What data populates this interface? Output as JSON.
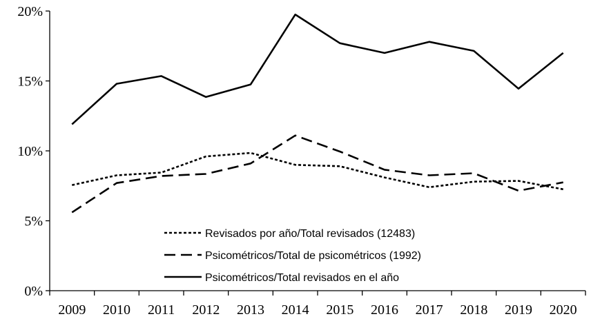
{
  "chart_data": {
    "type": "line",
    "title": "",
    "xlabel": "",
    "ylabel": "",
    "categories": [
      "2009",
      "2010",
      "2011",
      "2012",
      "2013",
      "2014",
      "2015",
      "2016",
      "2017",
      "2018",
      "2019",
      "2020"
    ],
    "ylim": [
      0,
      20
    ],
    "yticks": [
      0,
      5,
      10,
      15,
      20
    ],
    "ytick_labels": [
      "0%",
      "5%",
      "10%",
      "15%",
      "20%"
    ],
    "grid": false,
    "legend_position": "bottom-center",
    "series": [
      {
        "name": "Revisados por año/Total revisados (12483)",
        "style": "dotted",
        "values": [
          7.55,
          8.25,
          8.45,
          9.6,
          9.85,
          9.0,
          8.9,
          8.1,
          7.4,
          7.8,
          7.85,
          7.25
        ]
      },
      {
        "name": "Psicométricos/Total de psicométricos (1992)",
        "style": "dashed",
        "values": [
          5.6,
          7.7,
          8.2,
          8.35,
          9.1,
          11.1,
          9.95,
          8.65,
          8.25,
          8.4,
          7.15,
          7.75
        ]
      },
      {
        "name": "Psicométricos/Total revisados en el año",
        "style": "solid",
        "values": [
          11.9,
          14.8,
          15.35,
          13.85,
          14.75,
          19.75,
          17.7,
          17.0,
          17.8,
          17.15,
          14.45,
          17.0
        ]
      }
    ]
  }
}
